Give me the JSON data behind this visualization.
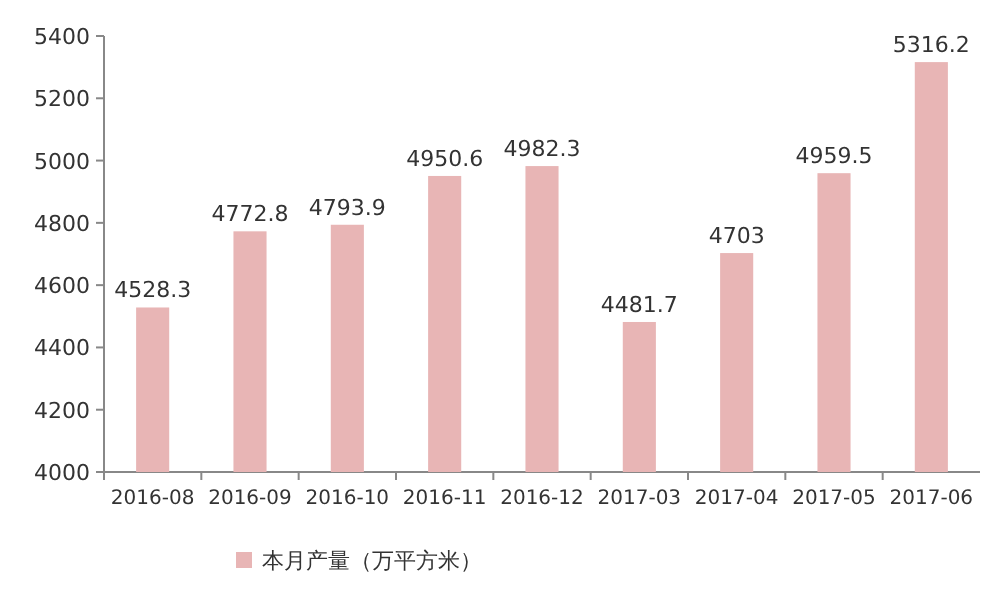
{
  "chart_data": {
    "type": "bar",
    "categories": [
      "2016-08",
      "2016-09",
      "2016-10",
      "2016-11",
      "2016-12",
      "2017-03",
      "2017-04",
      "2017-05",
      "2017-06"
    ],
    "series": [
      {
        "name": "本月产量（万平方米）",
        "color": "#e8b5b5",
        "values": [
          4528.3,
          4772.8,
          4793.9,
          4950.6,
          4982.3,
          4481.7,
          4703,
          4959.5,
          5316.2
        ]
      }
    ],
    "ylim": [
      4000,
      5400
    ],
    "yticks": [
      4000,
      4200,
      4400,
      4600,
      4800,
      5000,
      5200,
      5400
    ],
    "data_labels": true,
    "legend": "bottom"
  }
}
